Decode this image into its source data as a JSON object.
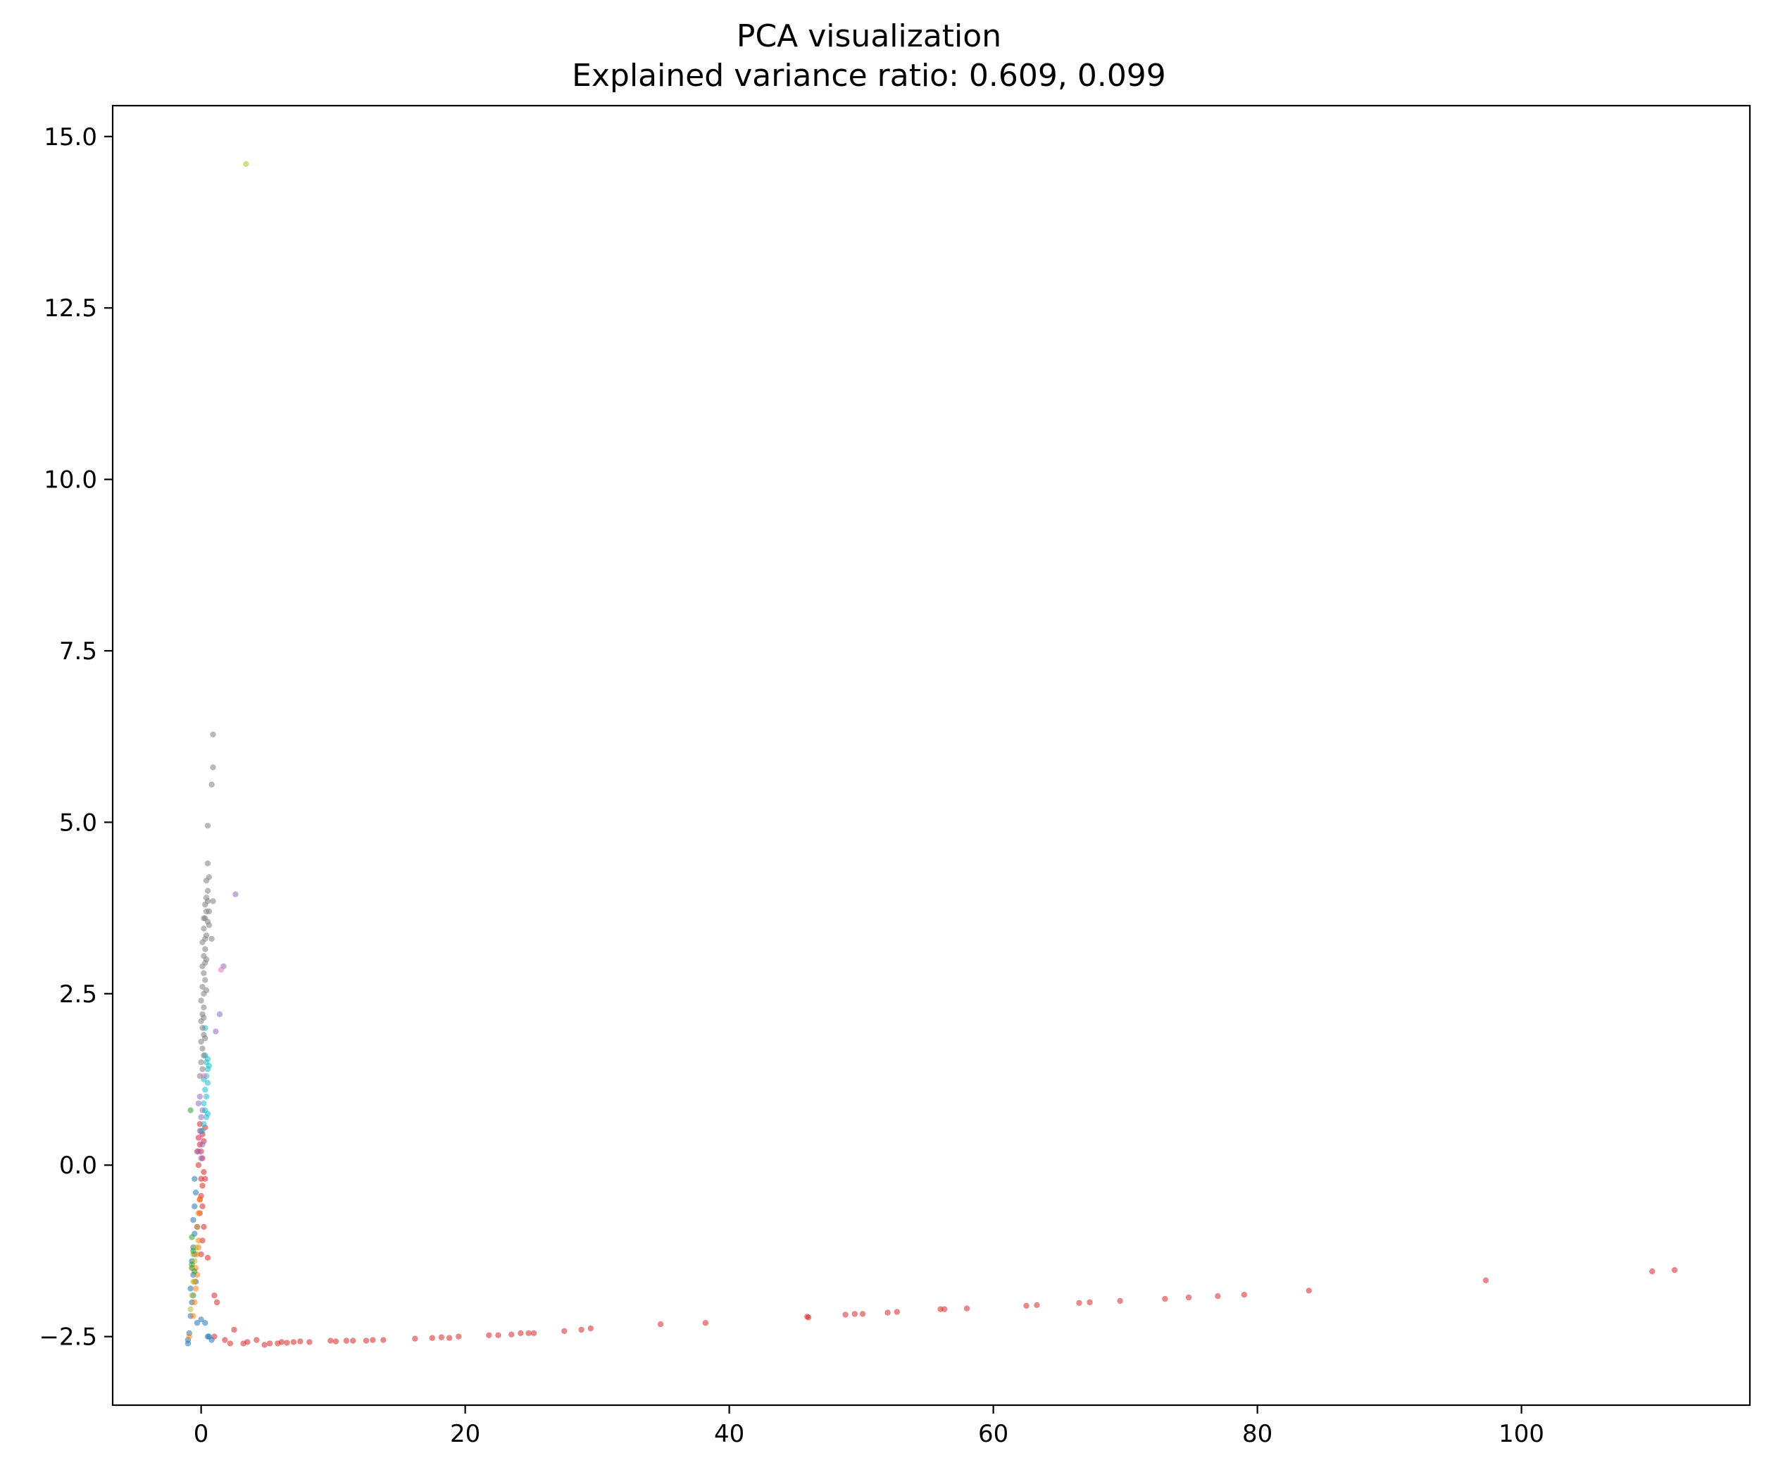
{
  "chart_data": {
    "type": "scatter",
    "title": "PCA visualization",
    "subtitle": "Explained variance ratio: 0.609, 0.099",
    "xlabel": "",
    "ylabel": "",
    "xlim": [
      -6.7,
      117.3
    ],
    "ylim": [
      -3.5,
      15.45
    ],
    "xticks": [
      0,
      20,
      40,
      60,
      80,
      100
    ],
    "xtick_labels": [
      "0",
      "20",
      "40",
      "60",
      "80",
      "100"
    ],
    "yticks": [
      -2.5,
      0.0,
      2.5,
      5.0,
      7.5,
      10.0,
      12.5,
      15.0
    ],
    "ytick_labels": [
      "−2.5",
      "0.0",
      "2.5",
      "5.0",
      "7.5",
      "10.0",
      "12.5",
      "15.0"
    ],
    "grid": false,
    "legend": "none",
    "marker_opacity": 0.55,
    "series": [
      {
        "color": "#d62728",
        "points": [
          [
            -0.1,
            0.6
          ],
          [
            0.0,
            0.5
          ],
          [
            0.1,
            0.45
          ],
          [
            -0.2,
            0.4
          ],
          [
            0.2,
            0.35
          ],
          [
            -0.1,
            0.3
          ],
          [
            0.0,
            0.2
          ],
          [
            0.1,
            0.1
          ],
          [
            -0.2,
            0.0
          ],
          [
            0.2,
            -0.1
          ],
          [
            0.0,
            -0.2
          ],
          [
            0.1,
            -0.3
          ],
          [
            0.0,
            -0.45
          ],
          [
            0.1,
            -0.6
          ],
          [
            -0.1,
            -0.7
          ],
          [
            0.2,
            -0.9
          ],
          [
            0.1,
            -1.1
          ],
          [
            0.0,
            -1.3
          ],
          [
            -0.1,
            -0.5
          ],
          [
            0.3,
            0.55
          ],
          [
            -0.3,
            0.2
          ],
          [
            0.3,
            -0.2
          ],
          [
            0.5,
            -1.35
          ],
          [
            1.0,
            -1.9
          ],
          [
            1.2,
            -2.0
          ],
          [
            1.0,
            -2.5
          ],
          [
            1.8,
            -2.55
          ],
          [
            2.2,
            -2.6
          ],
          [
            2.5,
            -2.4
          ],
          [
            3.2,
            -2.6
          ],
          [
            3.5,
            -2.58
          ],
          [
            4.2,
            -2.55
          ],
          [
            4.8,
            -2.62
          ],
          [
            5.2,
            -2.6
          ],
          [
            5.8,
            -2.6
          ],
          [
            6.1,
            -2.58
          ],
          [
            6.5,
            -2.59
          ],
          [
            7.0,
            -2.58
          ],
          [
            7.5,
            -2.57
          ],
          [
            8.2,
            -2.58
          ],
          [
            9.8,
            -2.56
          ],
          [
            10.2,
            -2.57
          ],
          [
            11.0,
            -2.56
          ],
          [
            11.5,
            -2.56
          ],
          [
            12.5,
            -2.56
          ],
          [
            13.0,
            -2.55
          ],
          [
            13.8,
            -2.55
          ],
          [
            16.2,
            -2.53
          ],
          [
            17.5,
            -2.52
          ],
          [
            18.2,
            -2.51
          ],
          [
            18.8,
            -2.52
          ],
          [
            19.5,
            -2.5
          ],
          [
            21.8,
            -2.48
          ],
          [
            22.5,
            -2.48
          ],
          [
            23.5,
            -2.47
          ],
          [
            24.2,
            -2.45
          ],
          [
            24.8,
            -2.45
          ],
          [
            25.2,
            -2.45
          ],
          [
            27.5,
            -2.42
          ],
          [
            28.8,
            -2.4
          ],
          [
            29.5,
            -2.38
          ],
          [
            34.8,
            -2.32
          ],
          [
            38.2,
            -2.3
          ],
          [
            45.9,
            -2.21
          ],
          [
            46.0,
            -2.22
          ],
          [
            48.8,
            -2.18
          ],
          [
            49.5,
            -2.17
          ],
          [
            50.1,
            -2.17
          ],
          [
            52.0,
            -2.15
          ],
          [
            52.7,
            -2.14
          ],
          [
            56.0,
            -2.1
          ],
          [
            56.3,
            -2.1
          ],
          [
            58.0,
            -2.09
          ],
          [
            62.5,
            -2.05
          ],
          [
            63.3,
            -2.04
          ],
          [
            66.5,
            -2.01
          ],
          [
            67.3,
            -2.0
          ],
          [
            69.6,
            -1.98
          ],
          [
            73.0,
            -1.95
          ],
          [
            74.8,
            -1.93
          ],
          [
            77.0,
            -1.91
          ],
          [
            79.0,
            -1.89
          ],
          [
            83.9,
            -1.83
          ],
          [
            97.3,
            -1.68
          ],
          [
            109.9,
            -1.55
          ],
          [
            111.6,
            -1.53
          ]
        ]
      },
      {
        "color": "#1f77b4",
        "points": [
          [
            -1.0,
            -2.6
          ],
          [
            -1.0,
            -2.55
          ],
          [
            -0.9,
            -2.45
          ],
          [
            -0.8,
            -2.2
          ],
          [
            -0.7,
            -2.0
          ],
          [
            -0.8,
            -1.8
          ],
          [
            -0.6,
            -1.6
          ],
          [
            -0.7,
            -1.4
          ],
          [
            -0.6,
            -1.2
          ],
          [
            -0.5,
            -1.0
          ],
          [
            -0.6,
            -0.8
          ],
          [
            -0.5,
            -0.6
          ],
          [
            -0.4,
            -0.4
          ],
          [
            -0.5,
            -0.2
          ],
          [
            -0.6,
            -1.9
          ],
          [
            -0.4,
            -1.7
          ],
          [
            -0.3,
            -2.3
          ],
          [
            0.0,
            -2.25
          ],
          [
            0.3,
            -2.3
          ],
          [
            0.5,
            -2.5
          ],
          [
            0.8,
            -2.55
          ],
          [
            0.6,
            -2.5
          ],
          [
            -0.7,
            -1.5
          ],
          [
            -0.5,
            -1.3
          ],
          [
            -0.3,
            -0.9
          ]
        ]
      },
      {
        "color": "#ff7f0e",
        "points": [
          [
            -0.6,
            -2.2
          ],
          [
            -0.5,
            -2.0
          ],
          [
            -0.4,
            -1.8
          ],
          [
            -0.3,
            -1.6
          ],
          [
            -0.4,
            -1.5
          ],
          [
            -0.3,
            -1.3
          ],
          [
            -0.2,
            -1.1
          ],
          [
            -0.3,
            -0.9
          ],
          [
            -0.2,
            -0.7
          ],
          [
            -0.1,
            -0.5
          ],
          [
            -0.5,
            -1.7
          ],
          [
            -0.2,
            -1.2
          ],
          [
            -0.9,
            -2.5
          ]
        ]
      },
      {
        "color": "#bcbd22",
        "points": [
          [
            3.4,
            14.6
          ],
          [
            -0.8,
            -2.1
          ],
          [
            -0.7,
            -1.9
          ],
          [
            -0.6,
            -1.7
          ],
          [
            -0.7,
            -1.5
          ],
          [
            -0.5,
            -1.4
          ],
          [
            -0.6,
            -1.3
          ],
          [
            -0.4,
            -1.2
          ]
        ]
      },
      {
        "color": "#2ca02c",
        "points": [
          [
            -0.8,
            0.8
          ],
          [
            -0.7,
            -1.45
          ],
          [
            -0.6,
            -1.25
          ],
          [
            -0.7,
            -1.05
          ],
          [
            -0.5,
            -1.55
          ]
        ]
      },
      {
        "color": "#9467bd",
        "points": [
          [
            2.6,
            3.95
          ],
          [
            1.7,
            2.9
          ],
          [
            1.4,
            2.2
          ],
          [
            1.1,
            1.95
          ],
          [
            -0.2,
            0.9
          ],
          [
            0.0,
            0.7
          ],
          [
            -0.1,
            0.5
          ],
          [
            0.1,
            0.3
          ],
          [
            -0.2,
            0.2
          ],
          [
            0.0,
            0.1
          ],
          [
            0.1,
            0.8
          ],
          [
            -0.1,
            1.0
          ]
        ]
      },
      {
        "color": "#17becf",
        "points": [
          [
            0.3,
            1.6
          ],
          [
            0.4,
            1.5
          ],
          [
            0.5,
            1.4
          ],
          [
            0.4,
            1.3
          ],
          [
            0.5,
            1.2
          ],
          [
            0.3,
            1.1
          ],
          [
            0.4,
            1.0
          ],
          [
            0.2,
            0.9
          ],
          [
            0.3,
            0.8
          ],
          [
            0.4,
            0.7
          ],
          [
            0.2,
            0.6
          ],
          [
            0.1,
            0.5
          ],
          [
            0.5,
            1.55
          ],
          [
            0.6,
            1.45
          ],
          [
            0.3,
            2.0
          ],
          [
            0.5,
            0.75
          ],
          [
            0.2,
            1.25
          ]
        ]
      },
      {
        "color": "#e377c2",
        "points": [
          [
            1.5,
            2.85
          ],
          [
            0.2,
            1.3
          ],
          [
            -0.1,
            0.4
          ]
        ]
      },
      {
        "color": "#7f7f7f",
        "points": [
          [
            0.9,
            6.28
          ],
          [
            0.9,
            5.8
          ],
          [
            0.8,
            5.55
          ],
          [
            0.5,
            4.95
          ],
          [
            0.5,
            4.4
          ],
          [
            0.6,
            4.2
          ],
          [
            0.4,
            4.15
          ],
          [
            0.5,
            4.0
          ],
          [
            0.4,
            3.9
          ],
          [
            0.9,
            3.85
          ],
          [
            0.3,
            3.8
          ],
          [
            0.4,
            3.7
          ],
          [
            0.3,
            3.6
          ],
          [
            0.5,
            3.55
          ],
          [
            0.2,
            3.45
          ],
          [
            0.4,
            3.35
          ],
          [
            0.3,
            3.3
          ],
          [
            0.1,
            3.25
          ],
          [
            0.3,
            3.15
          ],
          [
            0.2,
            3.05
          ],
          [
            0.4,
            3.0
          ],
          [
            0.1,
            2.9
          ],
          [
            0.2,
            2.8
          ],
          [
            0.3,
            2.7
          ],
          [
            0.1,
            2.6
          ],
          [
            0.2,
            2.5
          ],
          [
            0.0,
            2.4
          ],
          [
            0.2,
            2.3
          ],
          [
            0.1,
            2.2
          ],
          [
            0.0,
            2.1
          ],
          [
            0.1,
            2.0
          ],
          [
            0.2,
            1.9
          ],
          [
            0.0,
            1.8
          ],
          [
            0.1,
            1.7
          ],
          [
            0.2,
            1.6
          ],
          [
            0.0,
            1.5
          ],
          [
            0.1,
            1.4
          ],
          [
            -0.1,
            1.3
          ],
          [
            0.8,
            3.3
          ],
          [
            0.6,
            3.5
          ],
          [
            0.2,
            3.6
          ],
          [
            0.5,
            3.85
          ],
          [
            0.6,
            3.7
          ],
          [
            0.3,
            2.95
          ],
          [
            0.4,
            2.55
          ],
          [
            0.2,
            2.15
          ],
          [
            0.3,
            1.85
          ]
        ]
      }
    ]
  }
}
